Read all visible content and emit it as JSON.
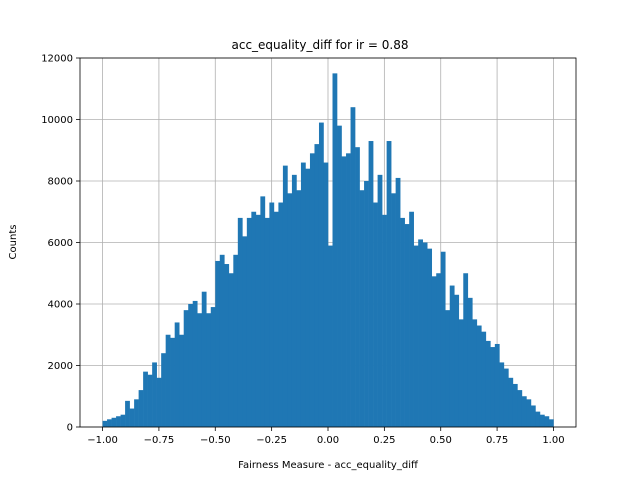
{
  "chart_data": {
    "type": "bar",
    "title": "acc_equality_diff for ir = 0.88",
    "xlabel": "Fairness Measure - acc_equality_diff",
    "ylabel": "Counts",
    "xlim": [
      -1.1,
      1.1
    ],
    "ylim": [
      0,
      12000
    ],
    "grid": true,
    "bar_color": "#1f77b4",
    "x_ticks": [
      "−1.00",
      "−0.75",
      "−0.50",
      "−0.25",
      "0.00",
      "0.25",
      "0.50",
      "0.75",
      "1.00"
    ],
    "x_tick_values": [
      -1.0,
      -0.75,
      -0.5,
      -0.25,
      0.0,
      0.25,
      0.5,
      0.75,
      1.0
    ],
    "y_ticks": [
      "0",
      "2000",
      "4000",
      "6000",
      "8000",
      "10000",
      "12000"
    ],
    "y_tick_values": [
      0,
      2000,
      4000,
      6000,
      8000,
      10000,
      12000
    ],
    "bin_range": [
      -1.0,
      1.0
    ],
    "bin_count": 100,
    "values": [
      200,
      250,
      300,
      350,
      400,
      850,
      600,
      900,
      1200,
      1800,
      1700,
      2100,
      1600,
      2400,
      3000,
      2900,
      3400,
      3000,
      3800,
      4000,
      4100,
      3700,
      4400,
      3700,
      3900,
      5400,
      5600,
      5300,
      5000,
      5600,
      6800,
      6200,
      6800,
      7000,
      6900,
      7500,
      6800,
      7300,
      7000,
      7300,
      8500,
      7600,
      8200,
      7700,
      8600,
      8400,
      8900,
      9200,
      9900,
      8600,
      5900,
      11500,
      9800,
      8800,
      8900,
      10400,
      9100,
      7700,
      8000,
      9300,
      7300,
      8200,
      6900,
      9300,
      7600,
      8100,
      6800,
      6600,
      7000,
      5900,
      6100,
      6000,
      5800,
      4900,
      5000,
      5700,
      3800,
      4600,
      4300,
      3500,
      5000,
      4200,
      3500,
      3300,
      3100,
      2800,
      2600,
      2700,
      2100,
      1900,
      1600,
      1400,
      1200,
      1000,
      900,
      700,
      500,
      400,
      350,
      250
    ]
  }
}
